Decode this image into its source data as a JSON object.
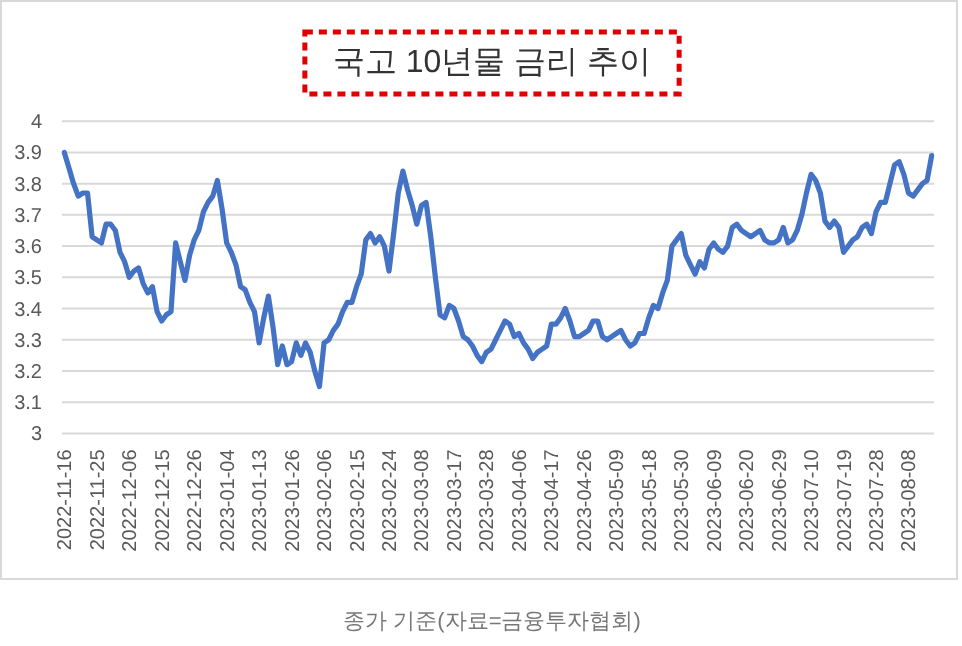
{
  "chart_data": {
    "type": "line",
    "title": "국고 10년물 금리 추이",
    "categories": [
      "2022-11-16",
      null,
      null,
      null,
      null,
      null,
      null,
      "2022-11-25",
      null,
      null,
      null,
      null,
      null,
      null,
      "2022-12-06",
      null,
      null,
      null,
      null,
      null,
      null,
      "2022-12-15",
      null,
      null,
      null,
      null,
      null,
      null,
      "2022-12-26",
      null,
      null,
      null,
      null,
      null,
      null,
      "2023-01-04",
      null,
      null,
      null,
      null,
      null,
      null,
      "2023-01-13",
      null,
      null,
      null,
      null,
      null,
      null,
      "2023-01-26",
      null,
      null,
      null,
      null,
      null,
      null,
      "2023-02-06",
      null,
      null,
      null,
      null,
      null,
      null,
      "2023-02-15",
      null,
      null,
      null,
      null,
      null,
      null,
      "2023-02-24",
      null,
      null,
      null,
      null,
      null,
      null,
      "2023-03-08",
      null,
      null,
      null,
      null,
      null,
      null,
      "2023-03-17",
      null,
      null,
      null,
      null,
      null,
      null,
      "2023-03-28",
      null,
      null,
      null,
      null,
      null,
      null,
      "2023-04-06",
      null,
      null,
      null,
      null,
      null,
      null,
      "2023-04-17",
      null,
      null,
      null,
      null,
      null,
      null,
      "2023-04-26",
      null,
      null,
      null,
      null,
      null,
      null,
      "2023-05-09",
      null,
      null,
      null,
      null,
      null,
      null,
      "2023-05-18",
      null,
      null,
      null,
      null,
      null,
      null,
      "2023-05-30",
      null,
      null,
      null,
      null,
      null,
      null,
      "2023-06-09",
      null,
      null,
      null,
      null,
      null,
      null,
      "2023-06-20",
      null,
      null,
      null,
      null,
      null,
      null,
      "2023-06-29",
      null,
      null,
      null,
      null,
      null,
      null,
      "2023-07-10",
      null,
      null,
      null,
      null,
      null,
      null,
      "2023-07-19",
      null,
      null,
      null,
      null,
      null,
      null,
      "2023-07-28",
      null,
      null,
      null,
      null,
      null,
      null,
      "2023-08-08",
      null,
      null,
      null,
      null,
      null
    ],
    "series": [
      {
        "color": "#4472c4",
        "values": [
          3.9,
          3.85,
          3.8,
          3.76,
          3.77,
          3.77,
          3.63,
          3.62,
          3.61,
          3.67,
          3.67,
          3.65,
          3.58,
          3.55,
          3.5,
          3.52,
          3.53,
          3.48,
          3.45,
          3.47,
          3.39,
          3.36,
          3.38,
          3.39,
          3.61,
          3.55,
          3.49,
          3.57,
          3.62,
          3.65,
          3.71,
          3.74,
          3.76,
          3.81,
          3.72,
          3.61,
          3.58,
          3.54,
          3.47,
          3.46,
          3.42,
          3.39,
          3.29,
          3.37,
          3.44,
          3.34,
          3.22,
          3.28,
          3.22,
          3.23,
          3.29,
          3.25,
          3.29,
          3.26,
          3.2,
          3.15,
          3.29,
          3.3,
          3.33,
          3.35,
          3.39,
          3.42,
          3.42,
          3.47,
          3.51,
          3.62,
          3.64,
          3.61,
          3.63,
          3.6,
          3.52,
          3.64,
          3.77,
          3.84,
          3.78,
          3.73,
          3.67,
          3.73,
          3.74,
          3.63,
          3.5,
          3.38,
          3.37,
          3.41,
          3.4,
          3.36,
          3.31,
          3.3,
          3.28,
          3.25,
          3.23,
          3.26,
          3.27,
          3.3,
          3.33,
          3.36,
          3.35,
          3.31,
          3.32,
          3.29,
          3.27,
          3.24,
          3.26,
          3.27,
          3.28,
          3.35,
          3.35,
          3.37,
          3.4,
          3.36,
          3.31,
          3.31,
          3.32,
          3.33,
          3.36,
          3.36,
          3.31,
          3.3,
          3.31,
          3.32,
          3.33,
          3.3,
          3.28,
          3.29,
          3.32,
          3.32,
          3.37,
          3.41,
          3.4,
          3.45,
          3.49,
          3.6,
          3.62,
          3.64,
          3.57,
          3.54,
          3.51,
          3.55,
          3.53,
          3.59,
          3.61,
          3.59,
          3.58,
          3.6,
          3.66,
          3.67,
          3.65,
          3.64,
          3.63,
          3.64,
          3.65,
          3.62,
          3.61,
          3.61,
          3.62,
          3.66,
          3.61,
          3.62,
          3.65,
          3.7,
          3.77,
          3.83,
          3.81,
          3.77,
          3.68,
          3.66,
          3.68,
          3.66,
          3.58,
          3.6,
          3.62,
          3.63,
          3.66,
          3.67,
          3.64,
          3.71,
          3.74,
          3.74,
          3.8,
          3.86,
          3.87,
          3.83,
          3.77,
          3.76,
          3.78,
          3.8,
          3.81,
          3.89
        ]
      }
    ],
    "ylim": [
      3,
      4
    ],
    "yticks": [
      3,
      3.1,
      3.2,
      3.3,
      3.4,
      3.5,
      3.6,
      3.7,
      3.8,
      3.9,
      4
    ],
    "grid": "y",
    "marker": "none",
    "line_style": "solid",
    "annotations": [
      "종가 기준(자료=금융투자협회)"
    ]
  }
}
